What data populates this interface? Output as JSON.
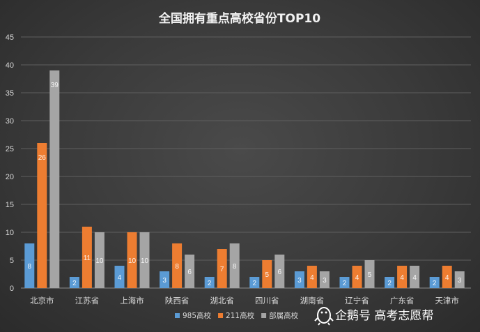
{
  "chart_data": {
    "type": "bar",
    "title": "全国拥有重点高校省份TOP10",
    "categories": [
      "北京市",
      "江苏省",
      "上海市",
      "陕西省",
      "湖北省",
      "四川省",
      "湖南省",
      "辽宁省",
      "广东省",
      "天津市"
    ],
    "series": [
      {
        "name": "985高校",
        "color": "#5b9bd5",
        "values": [
          8,
          2,
          4,
          3,
          2,
          2,
          3,
          2,
          2,
          2
        ]
      },
      {
        "name": "211高校",
        "color": "#ed7d31",
        "values": [
          26,
          11,
          10,
          8,
          7,
          5,
          4,
          4,
          4,
          4
        ]
      },
      {
        "name": "部属高校",
        "color": "#a5a5a5",
        "values": [
          39,
          10,
          10,
          6,
          8,
          6,
          3,
          5,
          4,
          3
        ]
      }
    ],
    "ylim": [
      0,
      45
    ],
    "yticks": [
      0,
      5,
      10,
      15,
      20,
      25,
      30,
      35,
      40,
      45
    ],
    "grid": true,
    "legend_position": "bottom",
    "xlabel": "",
    "ylabel": ""
  },
  "watermark": {
    "text": "企鹅号 高考志愿帮",
    "icon": "penguin-icon"
  }
}
